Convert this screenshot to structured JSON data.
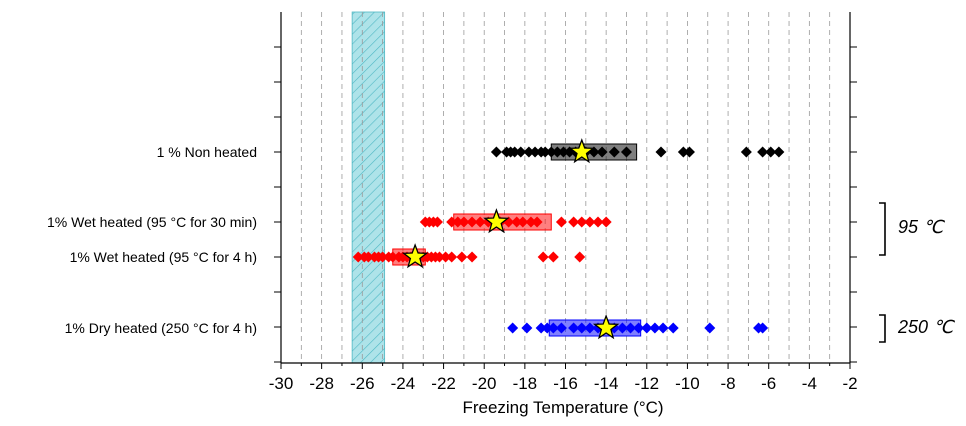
{
  "chart_data": {
    "type": "scatter",
    "xlabel": "Freezing Temperature (°C)",
    "xlim": [
      -30,
      -2
    ],
    "x_ticks": [
      "-30",
      "-28",
      "-26",
      "-24",
      "-22",
      "-20",
      "-18",
      "-16",
      "-14",
      "-12",
      "-10",
      "-8",
      "-6",
      "-4",
      "-2"
    ],
    "grid": "vertical dashed",
    "shaded_band": {
      "x_range": [
        -26.5,
        -24.9
      ],
      "color": "#a8e0e6",
      "pattern": "hatched"
    },
    "series": [
      {
        "name": "1 % Non heated",
        "color": "#000000",
        "points": [
          -19.4,
          -18.9,
          -18.7,
          -18.5,
          -18.2,
          -17.8,
          -17.5,
          -17.2,
          -17.0,
          -16.7,
          -16.4,
          -16.1,
          -15.8,
          -15.5,
          -15.0,
          -14.6,
          -14.2,
          -13.6,
          -13.0,
          -11.3,
          -10.2,
          -9.9,
          -7.1,
          -6.3,
          -5.9,
          -5.5
        ],
        "box": [
          -16.7,
          -12.5
        ],
        "median": -15.2
      },
      {
        "name": "1% Wet heated (95 °C for 30 min)",
        "color": "#ff0000",
        "points": [
          -22.9,
          -22.7,
          -22.5,
          -22.3,
          -21.6,
          -21.3,
          -21.0,
          -20.6,
          -20.2,
          -19.8,
          -19.5,
          -19.2,
          -18.8,
          -18.4,
          -18.1,
          -17.7,
          -17.4,
          -16.2,
          -15.6,
          -15.2,
          -14.8,
          -14.4,
          -14.0
        ],
        "box": [
          -21.5,
          -16.7
        ],
        "median": -19.4
      },
      {
        "name": "1% Wet heated (95 °C for 4 h)",
        "color": "#ff0000",
        "points": [
          -26.2,
          -25.9,
          -25.7,
          -25.4,
          -25.2,
          -25.0,
          -24.7,
          -24.5,
          -24.2,
          -24.0,
          -23.8,
          -23.6,
          -23.4,
          -23.2,
          -23.0,
          -22.8,
          -22.6,
          -22.4,
          -22.2,
          -21.9,
          -21.6,
          -21.1,
          -20.6,
          -17.1,
          -16.6,
          -15.3
        ],
        "box": [
          -24.5,
          -22.9
        ],
        "median": -23.4
      },
      {
        "name": "1% Dry heated (250 °C for 4 h)",
        "color": "#0000ff",
        "points": [
          -18.6,
          -17.9,
          -17.2,
          -16.9,
          -16.6,
          -16.2,
          -15.6,
          -15.2,
          -14.8,
          -14.4,
          -14.0,
          -13.6,
          -13.2,
          -12.8,
          -12.4,
          -12.0,
          -11.6,
          -11.2,
          -10.7,
          -8.9,
          -6.5,
          -6.3
        ],
        "box": [
          -16.8,
          -12.3
        ],
        "median": -14.0
      }
    ],
    "group_labels": [
      {
        "text": "95 ℃",
        "series": [
          1,
          2
        ]
      },
      {
        "text": "250 ℃",
        "series": [
          3
        ]
      }
    ]
  }
}
